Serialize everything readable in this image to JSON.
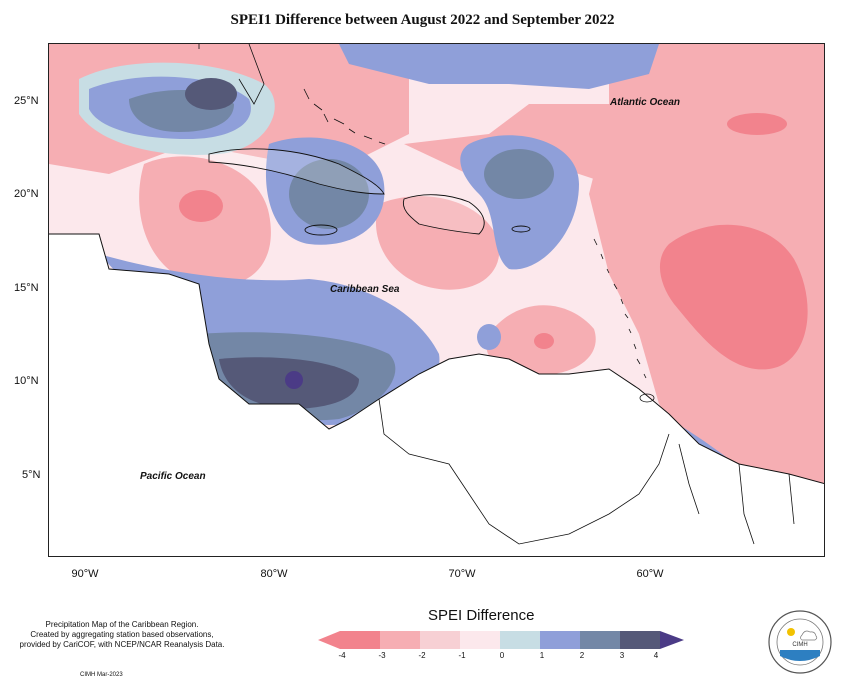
{
  "title": "SPEI1 Difference between August 2022 and September 2022",
  "latitude_labels": [
    "25°N",
    "20°N",
    "15°N",
    "10°N",
    "5°N"
  ],
  "longitude_labels": [
    "90°W",
    "80°W",
    "70°W",
    "60°W"
  ],
  "places": {
    "atlantic": "Atlantic Ocean",
    "caribbean": "Caribbean Sea",
    "pacific": "Pacific Ocean"
  },
  "credit_lines": [
    "Precipitation Map of the Caribbean Region.",
    "Created by aggregating station based observations,",
    "provided by CariCOF, with NCEP/NCAR Reanalysis Data."
  ],
  "cimh_date": "CIMH Mar-2023",
  "legend": {
    "title": "SPEI Difference",
    "ticks": [
      "-4",
      "-3",
      "-2",
      "-1",
      "0",
      "1",
      "2",
      "3",
      "4"
    ],
    "colors": [
      "#f2838d",
      "#f6aeb3",
      "#f7d0d4",
      "#fce8ec",
      "#c7dde4",
      "#8f9fd9",
      "#7387a6",
      "#555978",
      "#4b3b86"
    ]
  },
  "logo_text": "CIMH",
  "colors": {
    "map_background": "#fde6ea",
    "land": "#ffffff",
    "border": "#111111"
  }
}
